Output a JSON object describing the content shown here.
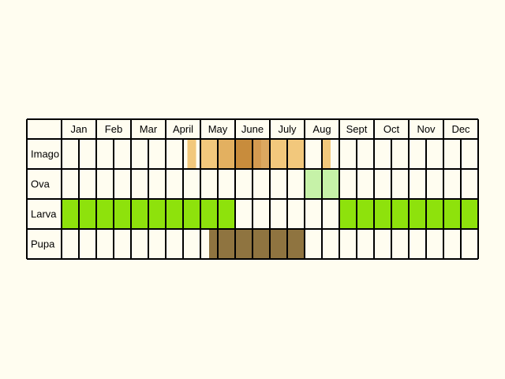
{
  "colors": {
    "background": "#fffdf0",
    "cell": "#fffdf0",
    "grid": "#000000"
  },
  "chart_data": {
    "type": "table",
    "months": [
      "Jan",
      "Feb",
      "Mar",
      "April",
      "May",
      "June",
      "July",
      "Aug",
      "Sept",
      "Oct",
      "Nov",
      "Dec"
    ],
    "columns_per_month": 2,
    "rows": [
      {
        "label": "Imago",
        "periods": [
          {
            "start": 7.25,
            "end": 7.75,
            "color": "#f2c87c"
          },
          {
            "start": 7.75,
            "end": 8,
            "color": "#fffdf0"
          },
          {
            "start": 8,
            "end": 9,
            "color": "#f2c87c"
          },
          {
            "start": 9,
            "end": 10,
            "color": "#e3b060"
          },
          {
            "start": 10,
            "end": 11,
            "color": "#c88c3c"
          },
          {
            "start": 11,
            "end": 11.5,
            "color": "#d49a50"
          },
          {
            "start": 11.5,
            "end": 12,
            "color": "#dca860"
          },
          {
            "start": 12,
            "end": 14,
            "color": "#f2c87c"
          },
          {
            "start": 15,
            "end": 15.5,
            "color": "#f2c87c"
          }
        ]
      },
      {
        "label": "Ova",
        "periods": [
          {
            "start": 14,
            "end": 16,
            "color": "#c6f2a8"
          }
        ]
      },
      {
        "label": "Larva",
        "periods": [
          {
            "start": 0,
            "end": 10,
            "color": "#8ee20c"
          },
          {
            "start": 16,
            "end": 24,
            "color": "#8ee20c"
          }
        ]
      },
      {
        "label": "Pupa",
        "periods": [
          {
            "start": 8.5,
            "end": 14,
            "color": "#8f7440"
          }
        ]
      }
    ]
  }
}
